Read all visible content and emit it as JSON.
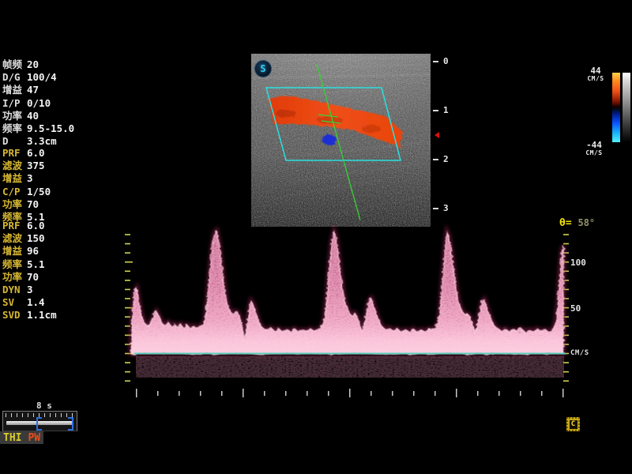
{
  "panels": {
    "b_mode": {
      "rows": [
        [
          "帧频",
          "20"
        ],
        [
          "D/G",
          "100/4"
        ],
        [
          "增益",
          "47"
        ],
        [
          "I/P",
          "0/10"
        ],
        [
          "功率",
          "40"
        ],
        [
          "频率",
          "9.5-15.0"
        ],
        [
          "D",
          "3.3cm"
        ]
      ]
    },
    "color": {
      "rows": [
        [
          "PRF",
          "6.0"
        ],
        [
          "滤波",
          "375"
        ],
        [
          "增益",
          "3"
        ],
        [
          "C/P",
          "1/50"
        ],
        [
          "功率",
          "70"
        ],
        [
          "频率",
          "5.1"
        ]
      ]
    },
    "pw": {
      "rows": [
        [
          "PRF",
          "6.0"
        ],
        [
          "滤波",
          "150"
        ],
        [
          "增益",
          "96"
        ],
        [
          "频率",
          "5.1"
        ],
        [
          "功率",
          "70"
        ],
        [
          "DYN",
          "3"
        ],
        [
          "SV",
          "1.4"
        ],
        [
          "SVD",
          "1.1cm"
        ]
      ]
    }
  },
  "color_scale": {
    "max": "44",
    "min": "-44",
    "unit": "CM/S"
  },
  "bmode_image": {
    "logo": "S",
    "depth_labels": [
      "0",
      "1",
      "2",
      "3"
    ]
  },
  "spectral": {
    "angle_prefix": "θ= ",
    "angle_value": "58°",
    "y_axis_labels": [
      {
        "value": 100,
        "text": "100"
      },
      {
        "value": 50,
        "text": "50"
      },
      {
        "value": 0,
        "text": "CM/S"
      }
    ],
    "colors": {
      "trace": "#df5f94",
      "trace_bright": "#ffd8e6",
      "baseline": "#57d0be",
      "ticks": "#d2d24e",
      "time_ticks": "#c8c8c8"
    },
    "envelope": [
      [
        166,
        8
      ],
      [
        168,
        45
      ],
      [
        171,
        68
      ],
      [
        173,
        71
      ],
      [
        176,
        55
      ],
      [
        179,
        42
      ],
      [
        183,
        33
      ],
      [
        187,
        30
      ],
      [
        191,
        34
      ],
      [
        195,
        41
      ],
      [
        198,
        46
      ],
      [
        201,
        41
      ],
      [
        205,
        33
      ],
      [
        209,
        30
      ],
      [
        213,
        34
      ],
      [
        217,
        29
      ],
      [
        221,
        32
      ],
      [
        225,
        28
      ],
      [
        229,
        32
      ],
      [
        233,
        27
      ],
      [
        237,
        31
      ],
      [
        241,
        27
      ],
      [
        245,
        30
      ],
      [
        249,
        27
      ],
      [
        253,
        30
      ],
      [
        257,
        31
      ],
      [
        260,
        38
      ],
      [
        263,
        62
      ],
      [
        266,
        92
      ],
      [
        269,
        118
      ],
      [
        272,
        132
      ],
      [
        274,
        134
      ],
      [
        277,
        121
      ],
      [
        280,
        100
      ],
      [
        283,
        78
      ],
      [
        286,
        60
      ],
      [
        289,
        50
      ],
      [
        292,
        45
      ],
      [
        295,
        43
      ],
      [
        298,
        46
      ],
      [
        301,
        45
      ],
      [
        304,
        38
      ],
      [
        307,
        26
      ],
      [
        310,
        15
      ],
      [
        313,
        32
      ],
      [
        316,
        50
      ],
      [
        318,
        57
      ],
      [
        321,
        53
      ],
      [
        324,
        44
      ],
      [
        327,
        36
      ],
      [
        330,
        30
      ],
      [
        334,
        27
      ],
      [
        338,
        25
      ],
      [
        343,
        28
      ],
      [
        348,
        24
      ],
      [
        353,
        27
      ],
      [
        358,
        23
      ],
      [
        363,
        26
      ],
      [
        368,
        24
      ],
      [
        373,
        27
      ],
      [
        378,
        23
      ],
      [
        383,
        26
      ],
      [
        388,
        24
      ],
      [
        393,
        27
      ],
      [
        398,
        24
      ],
      [
        403,
        26
      ],
      [
        407,
        29
      ],
      [
        411,
        38
      ],
      [
        414,
        62
      ],
      [
        417,
        95
      ],
      [
        420,
        122
      ],
      [
        423,
        133
      ],
      [
        425,
        128
      ],
      [
        428,
        110
      ],
      [
        431,
        88
      ],
      [
        434,
        68
      ],
      [
        437,
        55
      ],
      [
        440,
        48
      ],
      [
        443,
        43
      ],
      [
        446,
        41
      ],
      [
        449,
        44
      ],
      [
        452,
        40
      ],
      [
        455,
        32
      ],
      [
        458,
        24
      ],
      [
        461,
        30
      ],
      [
        464,
        44
      ],
      [
        467,
        57
      ],
      [
        470,
        60
      ],
      [
        473,
        52
      ],
      [
        476,
        44
      ],
      [
        480,
        35
      ],
      [
        484,
        29
      ],
      [
        488,
        26
      ],
      [
        493,
        28
      ],
      [
        498,
        24
      ],
      [
        503,
        27
      ],
      [
        508,
        23
      ],
      [
        513,
        26
      ],
      [
        518,
        24
      ],
      [
        523,
        27
      ],
      [
        528,
        23
      ],
      [
        533,
        26
      ],
      [
        538,
        24
      ],
      [
        543,
        27
      ],
      [
        547,
        25
      ],
      [
        551,
        28
      ],
      [
        555,
        34
      ],
      [
        558,
        55
      ],
      [
        561,
        88
      ],
      [
        564,
        118
      ],
      [
        566,
        132
      ],
      [
        568,
        128
      ],
      [
        571,
        112
      ],
      [
        574,
        92
      ],
      [
        577,
        72
      ],
      [
        580,
        58
      ],
      [
        583,
        50
      ],
      [
        586,
        45
      ],
      [
        589,
        42
      ],
      [
        592,
        43
      ],
      [
        595,
        40
      ],
      [
        598,
        32
      ],
      [
        601,
        24
      ],
      [
        604,
        30
      ],
      [
        607,
        44
      ],
      [
        610,
        56
      ],
      [
        613,
        59
      ],
      [
        616,
        51
      ],
      [
        619,
        43
      ],
      [
        622,
        36
      ],
      [
        626,
        30
      ],
      [
        630,
        27
      ],
      [
        635,
        25
      ],
      [
        640,
        27
      ],
      [
        645,
        23
      ],
      [
        650,
        26
      ],
      [
        655,
        24
      ],
      [
        660,
        27
      ],
      [
        665,
        23
      ],
      [
        670,
        26
      ],
      [
        675,
        24
      ],
      [
        680,
        27
      ],
      [
        685,
        24
      ],
      [
        690,
        26
      ],
      [
        694,
        24
      ],
      [
        698,
        25
      ],
      [
        701,
        28
      ],
      [
        704,
        36
      ],
      [
        707,
        60
      ],
      [
        709,
        88
      ],
      [
        711,
        108
      ],
      [
        713,
        118
      ]
    ]
  },
  "timeline": {
    "time_label": "8 s"
  },
  "modes": {
    "thi": "THI",
    "pw": "PW"
  },
  "cine": {
    "letter": "C"
  }
}
